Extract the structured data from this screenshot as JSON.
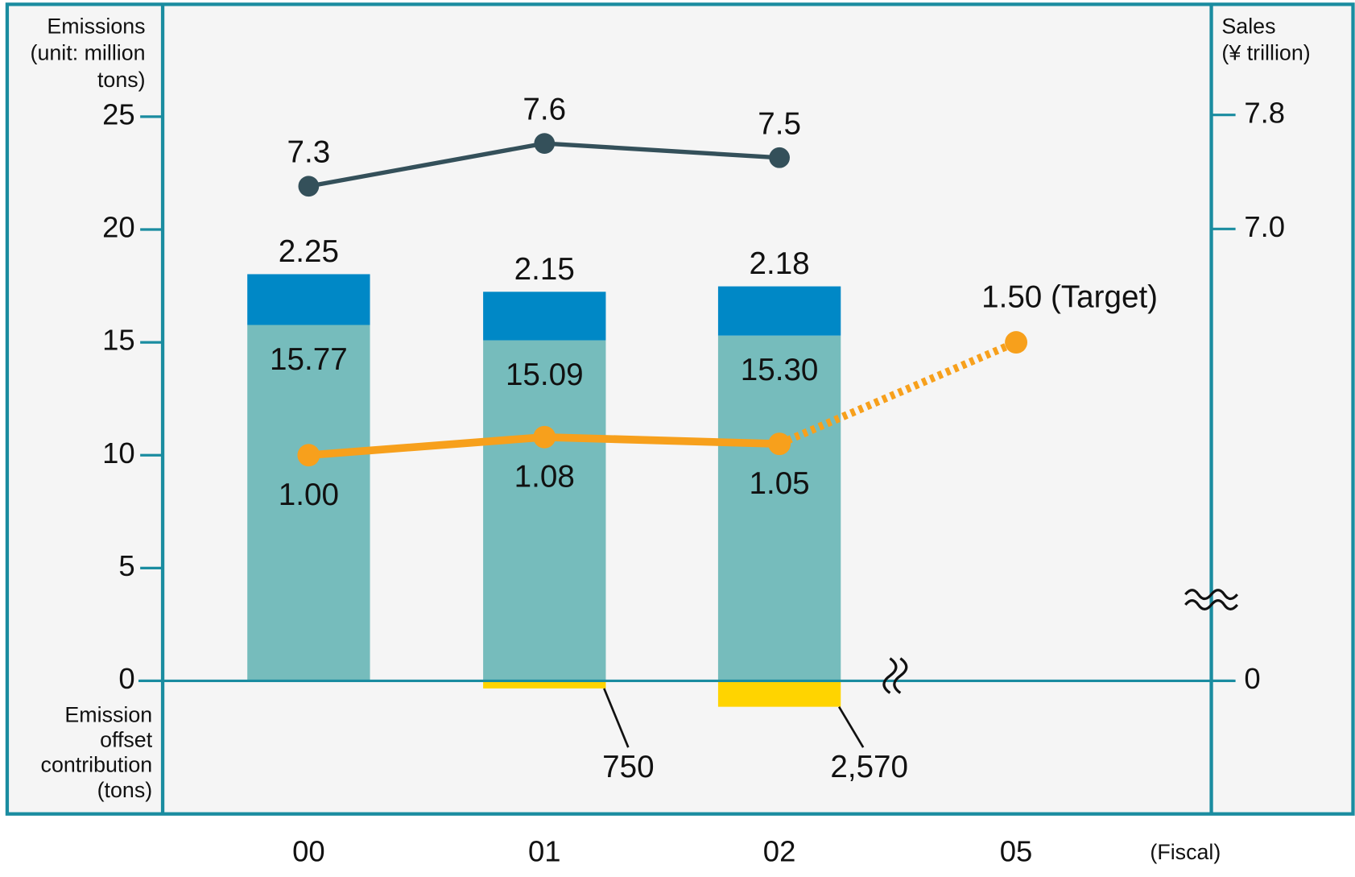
{
  "chart_data": {
    "type": "bar",
    "categories": [
      "00",
      "01",
      "02",
      "05"
    ],
    "xlabel": "(Fiscal)",
    "ylabel": [
      "Emissions",
      "(unit: million",
      "tons)"
    ],
    "ylim": [
      0,
      25
    ],
    "yticks": [
      0,
      5,
      10,
      15,
      20,
      25
    ],
    "y2label": [
      "Sales",
      "(¥ trillion)"
    ],
    "y2lim": [
      7.0,
      7.8
    ],
    "y2ticks": [
      0,
      {
        "value": 7.0,
        "label": "7.0"
      },
      {
        "value": 7.8,
        "label": "7.8"
      }
    ],
    "y3lim": [
      0,
      2.5
    ],
    "offset_label": [
      "Emission",
      "offset",
      "contribution",
      "(tons)"
    ],
    "series": [
      {
        "type": "bar",
        "color": "#76bcbc",
        "values": [
          15.77,
          15.09,
          15.3,
          null
        ],
        "value_labels": [
          "15.77",
          "15.09",
          "15.30",
          null
        ]
      },
      {
        "type": "bar",
        "color": "#0088c6",
        "values": [
          2.25,
          2.15,
          2.18,
          null
        ]
      },
      {
        "type": "bar",
        "axis": "offset",
        "color": "#ffd400",
        "values": [
          null,
          750,
          2570,
          null
        ],
        "value_labels": [
          null,
          "750",
          "2,570",
          null
        ]
      },
      {
        "type": "line",
        "axis": "y2",
        "color": "#34505a",
        "values": [
          7.3,
          7.6,
          7.5,
          null
        ]
      },
      {
        "type": "line",
        "axis": "y3",
        "color": "#f7a01c",
        "dotted_last_segment": true,
        "values": [
          1.0,
          1.08,
          1.05,
          1.5
        ],
        "value_labels": [
          "1.00",
          "1.08",
          "1.05",
          "1.50 (Target)"
        ]
      }
    ]
  }
}
